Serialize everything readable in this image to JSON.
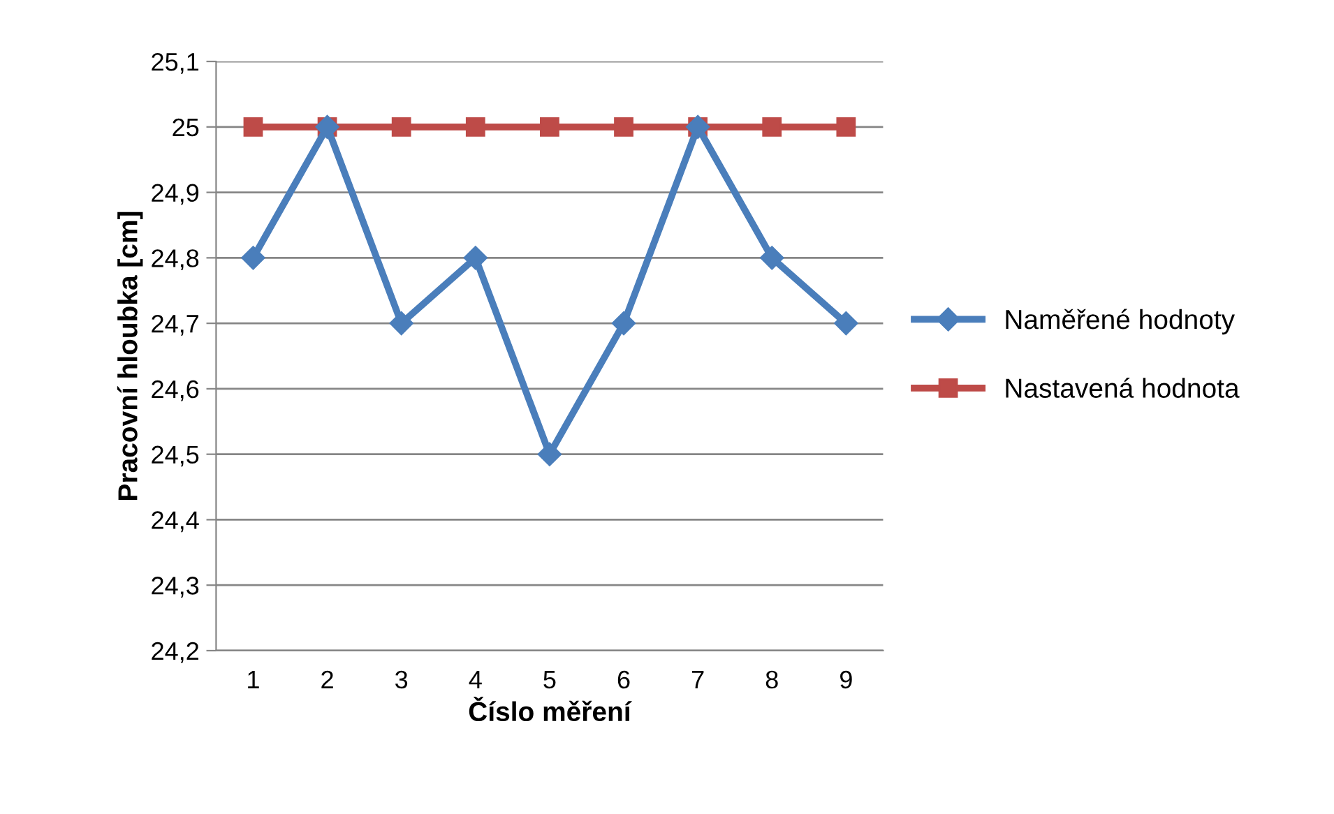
{
  "chart_data": {
    "type": "line",
    "xlabel": "Číslo měření",
    "ylabel": "Pracovní hloubka [cm]",
    "categories": [
      "1",
      "2",
      "3",
      "4",
      "5",
      "6",
      "7",
      "8",
      "9"
    ],
    "series": [
      {
        "name": "Naměřené hodnoty",
        "color": "#4a7ebb",
        "marker": "diamond",
        "values": [
          24.8,
          25,
          24.7,
          24.8,
          24.5,
          24.7,
          25,
          24.8,
          24.7
        ]
      },
      {
        "name": "Nastavená hodnota",
        "color": "#be4b48",
        "marker": "square",
        "values": [
          25,
          25,
          25,
          25,
          25,
          25,
          25,
          25,
          25
        ]
      }
    ],
    "ylim": [
      24.2,
      25.1
    ],
    "yticks": [
      {
        "value": 24.2,
        "label": "24,2"
      },
      {
        "value": 24.3,
        "label": "24,3"
      },
      {
        "value": 24.4,
        "label": "24,4"
      },
      {
        "value": 24.5,
        "label": "24,5"
      },
      {
        "value": 24.6,
        "label": "24,6"
      },
      {
        "value": 24.7,
        "label": "24,7"
      },
      {
        "value": 24.8,
        "label": "24,8"
      },
      {
        "value": 24.9,
        "label": "24,9"
      },
      {
        "value": 25,
        "label": "25"
      },
      {
        "value": 25.1,
        "label": "25,1"
      }
    ],
    "grid": "y",
    "legend": "right"
  }
}
